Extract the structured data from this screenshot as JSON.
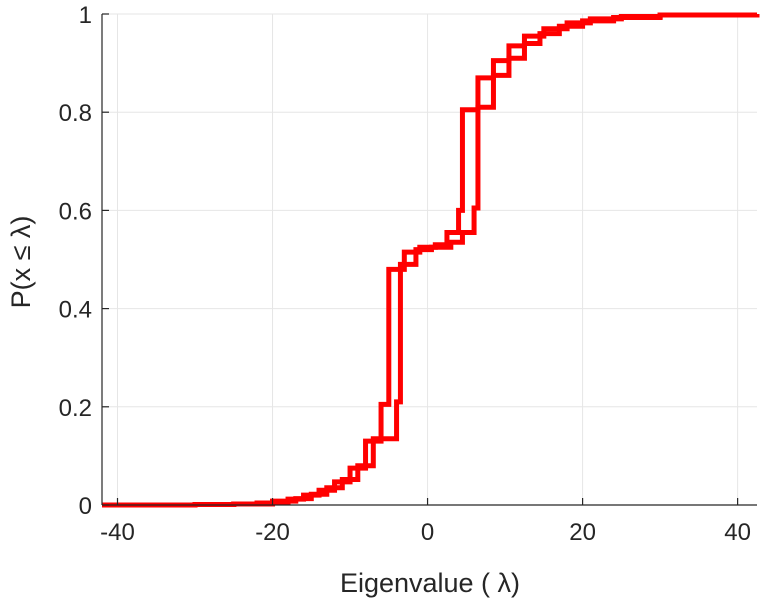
{
  "chart_data": {
    "type": "line",
    "subtype": "empirical-cdf-step",
    "title": "",
    "xlabel": "Eigenvalue (   λ)",
    "ylabel": "P(x ≤ λ)",
    "xlim": [
      -42,
      42.5
    ],
    "ylim": [
      0,
      1
    ],
    "grid": true,
    "legend": "none",
    "x_ticks": [
      {
        "value": -40,
        "label": "-40"
      },
      {
        "value": -20,
        "label": "-20"
      },
      {
        "value": 0,
        "label": "0"
      },
      {
        "value": 20,
        "label": "20"
      },
      {
        "value": 40,
        "label": "40"
      }
    ],
    "y_ticks": [
      {
        "value": 0,
        "label": "0"
      },
      {
        "value": 0.2,
        "label": "0.2"
      },
      {
        "value": 0.4,
        "label": "0.4"
      },
      {
        "value": 0.6,
        "label": "0.6"
      },
      {
        "value": 0.8,
        "label": "0.8"
      },
      {
        "value": 1,
        "label": "1"
      }
    ],
    "series": [
      {
        "color": "#ff0000",
        "points": [
          [
            -42,
            0
          ],
          [
            -30,
            0.001
          ],
          [
            -25,
            0.002
          ],
          [
            -20,
            0.006
          ],
          [
            -18,
            0.012
          ],
          [
            -16,
            0.02
          ],
          [
            -14,
            0.03
          ],
          [
            -12,
            0.047
          ],
          [
            -10,
            0.075
          ],
          [
            -8,
            0.13
          ],
          [
            -6,
            0.205
          ],
          [
            -5,
            0.48
          ],
          [
            -3,
            0.515
          ],
          [
            -1,
            0.525
          ],
          [
            1,
            0.53
          ],
          [
            2.5,
            0.555
          ],
          [
            4,
            0.6
          ],
          [
            4.5,
            0.805
          ],
          [
            6.5,
            0.87
          ],
          [
            8.5,
            0.905
          ],
          [
            10.5,
            0.935
          ],
          [
            12.5,
            0.955
          ],
          [
            15,
            0.97
          ],
          [
            18,
            0.982
          ],
          [
            21,
            0.99
          ],
          [
            25,
            0.995
          ],
          [
            30,
            0.998
          ],
          [
            42.5,
            1
          ]
        ]
      },
      {
        "color": "#ff0000",
        "points": [
          [
            -42,
            0
          ],
          [
            -30,
            0.001
          ],
          [
            -25,
            0.002
          ],
          [
            -22,
            0.004
          ],
          [
            -20,
            0.008
          ],
          [
            -17,
            0.013
          ],
          [
            -15,
            0.022
          ],
          [
            -13,
            0.035
          ],
          [
            -11,
            0.052
          ],
          [
            -9,
            0.08
          ],
          [
            -7,
            0.135
          ],
          [
            -4,
            0.21
          ],
          [
            -3.5,
            0.49
          ],
          [
            -1.5,
            0.52
          ],
          [
            0.5,
            0.525
          ],
          [
            3,
            0.535
          ],
          [
            4.5,
            0.555
          ],
          [
            6,
            0.605
          ],
          [
            6.5,
            0.81
          ],
          [
            8.5,
            0.875
          ],
          [
            10.5,
            0.91
          ],
          [
            12.5,
            0.94
          ],
          [
            14.5,
            0.96
          ],
          [
            17,
            0.975
          ],
          [
            20,
            0.986
          ],
          [
            24,
            0.993
          ],
          [
            30,
            0.998
          ],
          [
            42.5,
            1
          ]
        ]
      }
    ]
  }
}
